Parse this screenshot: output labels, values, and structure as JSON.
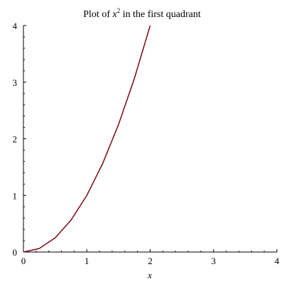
{
  "chart_data": {
    "type": "line",
    "title": {
      "prefix": "Plot of ",
      "variable": "x",
      "exponent": "2",
      "suffix": " in the first quadrant"
    },
    "xlabel": "x",
    "ylabel": "",
    "xlim": [
      0,
      4
    ],
    "ylim": [
      0,
      4
    ],
    "x_ticks": [
      "0",
      "1",
      "2",
      "3",
      "4"
    ],
    "y_ticks": [
      "0",
      "1",
      "2",
      "3",
      "4"
    ],
    "grid": false,
    "series": [
      {
        "color": "#7a0a14",
        "x": [
          0,
          0.25,
          0.5,
          0.75,
          1,
          1.25,
          1.5,
          1.75,
          2
        ],
        "y": [
          0,
          0.0625,
          0.25,
          0.5625,
          1,
          1.5625,
          2.25,
          3.0625,
          4
        ]
      }
    ]
  }
}
